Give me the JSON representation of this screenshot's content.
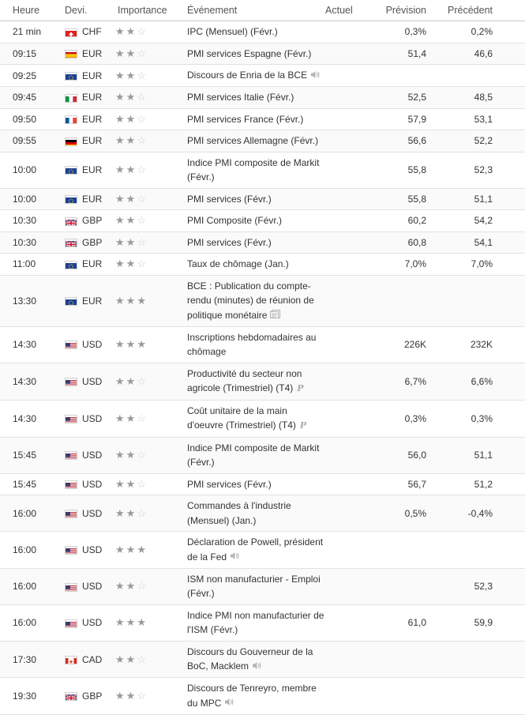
{
  "headers": {
    "time": "Heure",
    "currency": "Devi.",
    "importance": "Importance",
    "event": "Événement",
    "actual": "Actuel",
    "forecast": "Prévision",
    "previous": "Précédent"
  },
  "rows": [
    {
      "time": "21 min",
      "flag": "ch",
      "currency": "CHF",
      "stars": 2,
      "event": "IPC (Mensuel) (Févr.)",
      "icon": "",
      "actual": "",
      "forecast": "0,3%",
      "previous": "0,2%"
    },
    {
      "time": "09:15",
      "flag": "es",
      "currency": "EUR",
      "stars": 2,
      "event": "PMI services Espagne (Févr.)",
      "icon": "",
      "actual": "",
      "forecast": "51,4",
      "previous": "46,6"
    },
    {
      "time": "09:25",
      "flag": "eu",
      "currency": "EUR",
      "stars": 2,
      "event": "Discours de Enria de la BCE",
      "icon": "speaker",
      "actual": "",
      "forecast": "",
      "previous": ""
    },
    {
      "time": "09:45",
      "flag": "it",
      "currency": "EUR",
      "stars": 2,
      "event": "PMI services Italie (Févr.)",
      "icon": "",
      "actual": "",
      "forecast": "52,5",
      "previous": "48,5"
    },
    {
      "time": "09:50",
      "flag": "fr",
      "currency": "EUR",
      "stars": 2,
      "event": "PMI services France (Févr.)",
      "icon": "",
      "actual": "",
      "forecast": "57,9",
      "previous": "53,1"
    },
    {
      "time": "09:55",
      "flag": "de",
      "currency": "EUR",
      "stars": 2,
      "event": "PMI services Allemagne (Févr.)",
      "icon": "",
      "actual": "",
      "forecast": "56,6",
      "previous": "52,2"
    },
    {
      "time": "10:00",
      "flag": "eu",
      "currency": "EUR",
      "stars": 2,
      "event": "Indice PMI composite de Markit (Févr.)",
      "icon": "",
      "actual": "",
      "forecast": "55,8",
      "previous": "52,3"
    },
    {
      "time": "10:00",
      "flag": "eu",
      "currency": "EUR",
      "stars": 2,
      "event": "PMI services (Févr.)",
      "icon": "",
      "actual": "",
      "forecast": "55,8",
      "previous": "51,1"
    },
    {
      "time": "10:30",
      "flag": "gb",
      "currency": "GBP",
      "stars": 2,
      "event": "PMI Composite (Févr.)",
      "icon": "",
      "actual": "",
      "forecast": "60,2",
      "previous": "54,2"
    },
    {
      "time": "10:30",
      "flag": "gb",
      "currency": "GBP",
      "stars": 2,
      "event": "PMI services (Févr.)",
      "icon": "",
      "actual": "",
      "forecast": "60,8",
      "previous": "54,1"
    },
    {
      "time": "11:00",
      "flag": "eu",
      "currency": "EUR",
      "stars": 2,
      "event": "Taux de chômage (Jan.)",
      "icon": "",
      "actual": "",
      "forecast": "7,0%",
      "previous": "7,0%"
    },
    {
      "time": "13:30",
      "flag": "eu",
      "currency": "EUR",
      "stars": 3,
      "event": "BCE : Publication du compte-rendu (minutes) de réunion de politique monétaire",
      "icon": "document",
      "actual": "",
      "forecast": "",
      "previous": ""
    },
    {
      "time": "14:30",
      "flag": "us",
      "currency": "USD",
      "stars": 3,
      "event": "Inscriptions hebdomadaires au chômage",
      "icon": "",
      "actual": "",
      "forecast": "226K",
      "previous": "232K"
    },
    {
      "time": "14:30",
      "flag": "us",
      "currency": "USD",
      "stars": 2,
      "event": "Productivité du secteur non agricole (Trimestriel) (T4)",
      "icon": "preliminary",
      "actual": "",
      "forecast": "6,7%",
      "previous": "6,6%"
    },
    {
      "time": "14:30",
      "flag": "us",
      "currency": "USD",
      "stars": 2,
      "event": "Coût unitaire de la main d'oeuvre (Trimestriel) (T4)",
      "icon": "preliminary",
      "actual": "",
      "forecast": "0,3%",
      "previous": "0,3%"
    },
    {
      "time": "15:45",
      "flag": "us",
      "currency": "USD",
      "stars": 2,
      "event": "Indice PMI composite de Markit (Févr.)",
      "icon": "",
      "actual": "",
      "forecast": "56,0",
      "previous": "51,1"
    },
    {
      "time": "15:45",
      "flag": "us",
      "currency": "USD",
      "stars": 2,
      "event": "PMI services (Févr.)",
      "icon": "",
      "actual": "",
      "forecast": "56,7",
      "previous": "51,2"
    },
    {
      "time": "16:00",
      "flag": "us",
      "currency": "USD",
      "stars": 2,
      "event": "Commandes à l'industrie (Mensuel) (Jan.)",
      "icon": "",
      "actual": "",
      "forecast": "0,5%",
      "previous": "-0,4%"
    },
    {
      "time": "16:00",
      "flag": "us",
      "currency": "USD",
      "stars": 3,
      "event": "Déclaration de Powell, président de la Fed",
      "icon": "speaker",
      "actual": "",
      "forecast": "",
      "previous": ""
    },
    {
      "time": "16:00",
      "flag": "us",
      "currency": "USD",
      "stars": 2,
      "event": "ISM non manufacturier - Emploi (Févr.)",
      "icon": "",
      "actual": "",
      "forecast": "",
      "previous": "52,3"
    },
    {
      "time": "16:00",
      "flag": "us",
      "currency": "USD",
      "stars": 3,
      "event": "Indice PMI non manufacturier de l'ISM (Févr.)",
      "icon": "",
      "actual": "",
      "forecast": "61,0",
      "previous": "59,9"
    },
    {
      "time": "17:30",
      "flag": "ca",
      "currency": "CAD",
      "stars": 2,
      "event": "Discours du Gouverneur de la BoC, Macklem",
      "icon": "speaker",
      "actual": "",
      "forecast": "",
      "previous": ""
    },
    {
      "time": "19:30",
      "flag": "gb",
      "currency": "GBP",
      "stars": 2,
      "event": "Discours de Tenreyro, membre du MPC",
      "icon": "speaker",
      "actual": "",
      "forecast": "",
      "previous": ""
    }
  ]
}
